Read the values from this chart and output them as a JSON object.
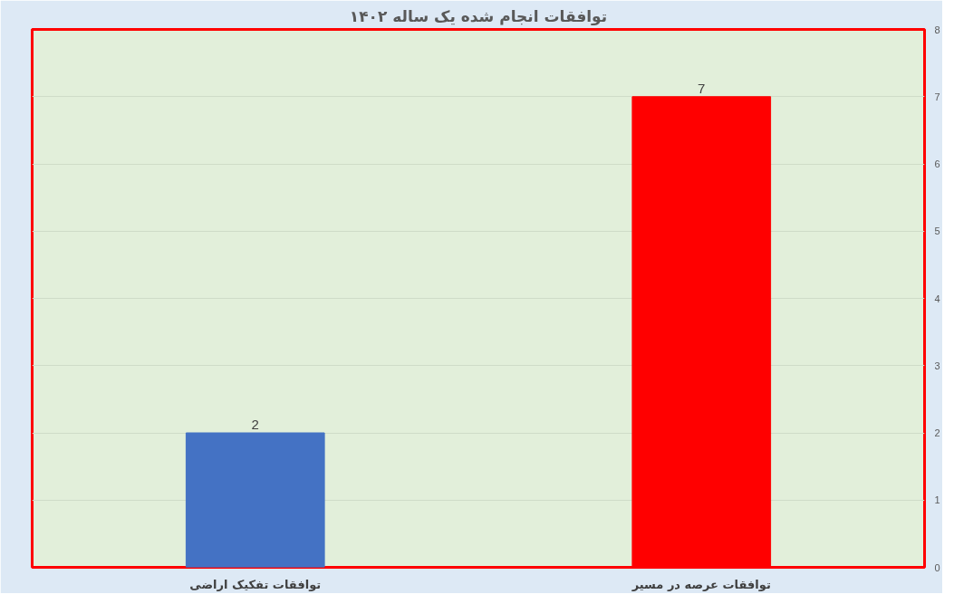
{
  "chart_data": {
    "type": "bar",
    "title": "توافقات انجام شده یک ساله ۱۴۰۲",
    "categories": [
      "توافقات تفکیک اراضی",
      "توافقات عرصه در مسیر"
    ],
    "values": [
      2,
      7
    ],
    "colors": [
      "#4472c4",
      "#ff0000"
    ],
    "ylim": [
      0,
      8
    ],
    "yticks": [
      0,
      1,
      2,
      3,
      4,
      5,
      6,
      7,
      8
    ],
    "grid": "y",
    "data_labels": true
  }
}
